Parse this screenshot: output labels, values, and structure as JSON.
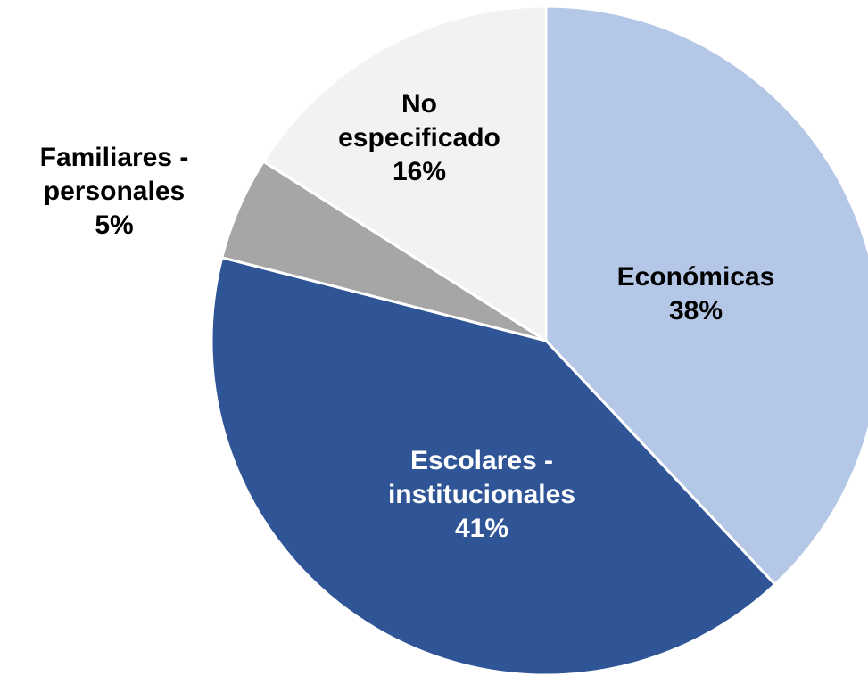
{
  "chart_data": {
    "type": "pie",
    "categories": [
      "Económicas",
      "Escolares - institucionales",
      "Familiares - personales",
      "No especificado"
    ],
    "values": [
      38,
      41,
      5,
      16
    ],
    "value_labels": [
      "38%",
      "41%",
      "5%",
      "16%"
    ],
    "colors": [
      "#b4c7e7",
      "#2f5597",
      "#a6a6a6",
      "#f2f2f2"
    ]
  }
}
